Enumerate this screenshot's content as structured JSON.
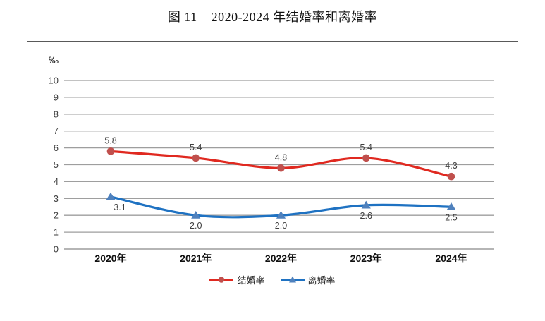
{
  "figure": {
    "title": "图 11    2020-2024 年结婚率和离婚率"
  },
  "chart_data": {
    "type": "line",
    "title": "图 11    2020-2024 年结婚率和离婚率",
    "unit_label": "‰",
    "categories": [
      "2020年",
      "2021年",
      "2022年",
      "2023年",
      "2024年"
    ],
    "series": [
      {
        "name": "结婚率",
        "values": [
          5.8,
          5.4,
          4.8,
          5.4,
          4.3
        ],
        "line_color": "#e02920",
        "marker_color": "#c0504d",
        "marker": "circle",
        "label_position": "above"
      },
      {
        "name": "离婚率",
        "values": [
          3.1,
          2.0,
          2.0,
          2.6,
          2.5
        ],
        "line_color": "#1f72c2",
        "marker_color": "#4f81bd",
        "marker": "triangle",
        "label_position": "below"
      }
    ],
    "ylim": [
      0,
      10
    ],
    "ytick_step": 1,
    "grid": true,
    "gridline_color": "#9e9e9e",
    "legend_position": "bottom",
    "smooth_lines": true,
    "label_decimals": 1
  }
}
